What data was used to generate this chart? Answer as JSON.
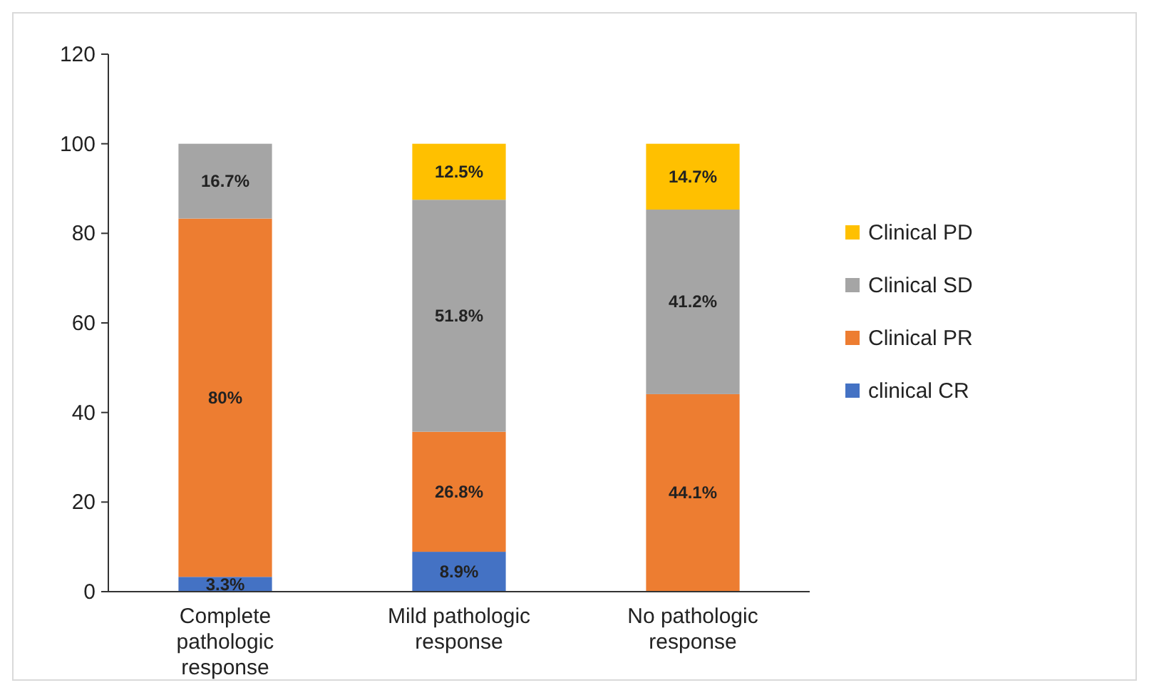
{
  "chart_data": {
    "type": "bar",
    "stacked": true,
    "categories": [
      "Complete pathologic response",
      "Mild pathologic response",
      "No pathologic response"
    ],
    "series": [
      {
        "name": "clinical CR",
        "color": "#4472c4",
        "values": [
          3.3,
          8.9,
          null
        ],
        "value_labels": [
          "3.3%",
          "8.9%",
          null
        ]
      },
      {
        "name": "Clinical PR",
        "color": "#ed7d31",
        "values": [
          80,
          26.8,
          44.1
        ],
        "value_labels": [
          "80%",
          "26.8%",
          "44.1%"
        ]
      },
      {
        "name": "Clinical SD",
        "color": "#a5a5a5",
        "values": [
          16.7,
          51.8,
          41.2
        ],
        "value_labels": [
          "16.7%",
          "51.8%",
          "41.2%"
        ]
      },
      {
        "name": "Clinical PD",
        "color": "#ffc000",
        "values": [
          null,
          12.5,
          14.7
        ],
        "value_labels": [
          null,
          "12.5%",
          "14.7%"
        ]
      }
    ],
    "ylim": [
      0,
      120
    ],
    "yticks": [
      0,
      20,
      40,
      60,
      80,
      100,
      120
    ],
    "grid": false,
    "legend": "right"
  }
}
